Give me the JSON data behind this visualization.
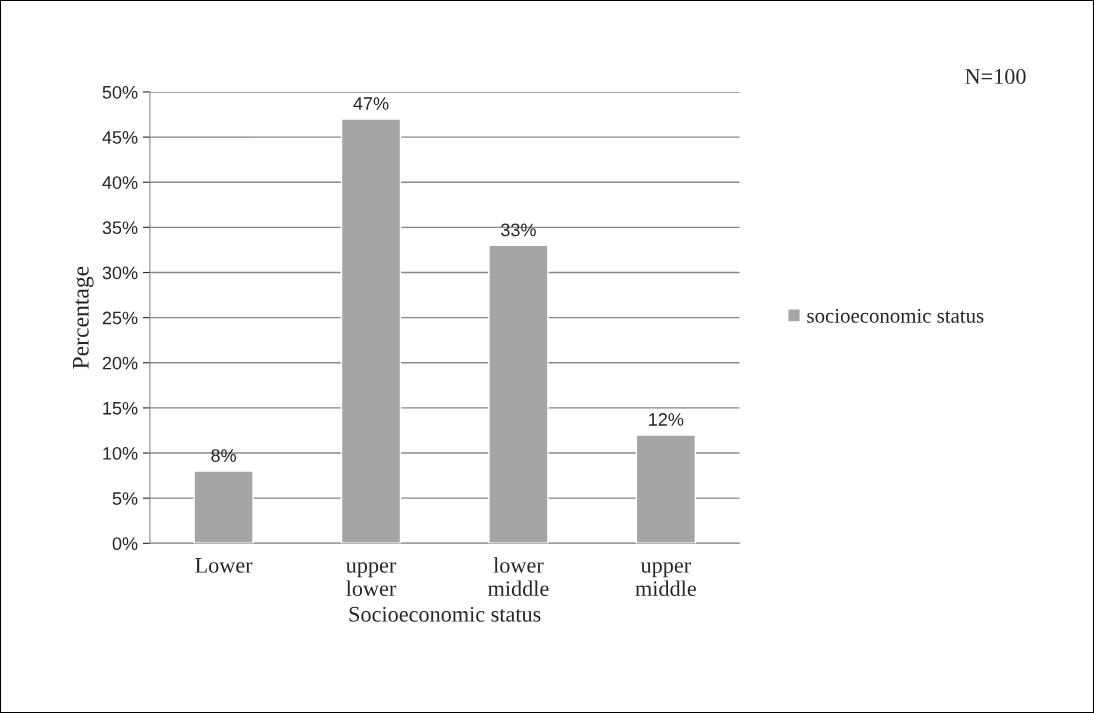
{
  "chart_data": {
    "type": "bar",
    "categories": [
      "Lower",
      "upper\nlower",
      "lower\nmiddle",
      "upper\nmiddle"
    ],
    "series": [
      {
        "name": "socioeconomic status",
        "color": "#a5a5a5",
        "values": [
          8,
          47,
          33,
          12
        ]
      }
    ],
    "value_labels": [
      "8%",
      "47%",
      "33%",
      "12%"
    ],
    "xlabel": "Socioeconomic status",
    "ylabel": "Percentage",
    "ylim": [
      0,
      50
    ],
    "yticks": [
      {
        "value": 0,
        "label": "0%"
      },
      {
        "value": 5,
        "label": "5%"
      },
      {
        "value": 10,
        "label": "10%"
      },
      {
        "value": 15,
        "label": "15%"
      },
      {
        "value": 20,
        "label": "20%"
      },
      {
        "value": 25,
        "label": "25%"
      },
      {
        "value": 30,
        "label": "30%"
      },
      {
        "value": 35,
        "label": "35%"
      },
      {
        "value": 40,
        "label": "40%"
      },
      {
        "value": 45,
        "label": "45%"
      },
      {
        "value": 50,
        "label": "50%"
      }
    ],
    "grid": "y",
    "legend": "right",
    "annotations": [
      "N=100"
    ]
  }
}
